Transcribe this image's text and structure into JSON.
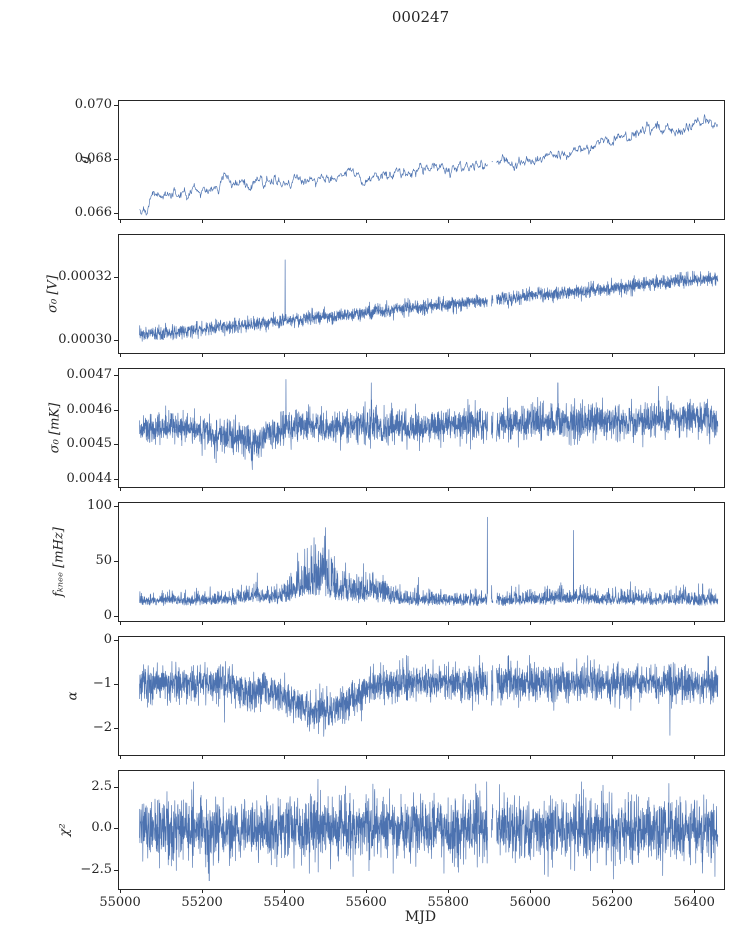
{
  "title": "000247",
  "chart_data": {
    "type": "line",
    "title": "000247",
    "xlabel": "MJD",
    "line_color": "#4c72b0",
    "axis_color": "#262626",
    "x_range": [
      54995,
      56470
    ],
    "x_data_range": [
      55045,
      56455
    ],
    "xticks": [
      55000,
      55200,
      55400,
      55600,
      55800,
      56000,
      56200,
      56400
    ],
    "xtick_labels": [
      "55000",
      "55200",
      "55400",
      "55600",
      "55800",
      "56000",
      "56200",
      "56400"
    ],
    "gaps": [
      [
        55894,
        55903
      ],
      [
        55907,
        55915
      ]
    ],
    "panels": [
      {
        "ylabel": "g",
        "ylim": [
          0.0658,
          0.0702
        ],
        "yticks": [
          0.066,
          0.068,
          0.07
        ],
        "ytick_labels": [
          "0.066",
          "0.068",
          "0.070"
        ],
        "mode": "line",
        "samples": 1300,
        "amp": 0.0001,
        "trend": [
          [
            55045,
            0.0662
          ],
          [
            55060,
            0.0661
          ],
          [
            55075,
            0.0666
          ],
          [
            55110,
            0.0668
          ],
          [
            55150,
            0.0668
          ],
          [
            55200,
            0.0669
          ],
          [
            55235,
            0.067
          ],
          [
            55255,
            0.0675
          ],
          [
            55275,
            0.0671
          ],
          [
            55320,
            0.0671
          ],
          [
            55370,
            0.0672
          ],
          [
            55420,
            0.0673
          ],
          [
            55470,
            0.0673
          ],
          [
            55520,
            0.0674
          ],
          [
            55565,
            0.0676
          ],
          [
            55595,
            0.067
          ],
          [
            55620,
            0.0674
          ],
          [
            55660,
            0.0675
          ],
          [
            55720,
            0.0676
          ],
          [
            55780,
            0.0678
          ],
          [
            55830,
            0.0677
          ],
          [
            55880,
            0.0679
          ],
          [
            55930,
            0.0678
          ],
          [
            55980,
            0.068
          ],
          [
            56030,
            0.0681
          ],
          [
            56080,
            0.0682
          ],
          [
            56130,
            0.0684
          ],
          [
            56180,
            0.0686
          ],
          [
            56230,
            0.0688
          ],
          [
            56280,
            0.0691
          ],
          [
            56310,
            0.0693
          ],
          [
            56340,
            0.0691
          ],
          [
            56380,
            0.0693
          ],
          [
            56420,
            0.0694
          ],
          [
            56455,
            0.0694
          ]
        ],
        "spikes": []
      },
      {
        "ylabel": "σ₀ [V]",
        "ylim": [
          0.000296,
          0.000334
        ],
        "yticks": [
          0.0003,
          0.00032
        ],
        "ytick_labels": [
          "0.00030",
          "0.00032"
        ],
        "mode": "band",
        "samples": 2800,
        "amp": 2.2e-06,
        "trend": [
          [
            55045,
            0.000302
          ],
          [
            55150,
            0.000303
          ],
          [
            55300,
            0.000305
          ],
          [
            55450,
            0.000307
          ],
          [
            55600,
            0.000309
          ],
          [
            55750,
            0.000311
          ],
          [
            55900,
            0.000313
          ],
          [
            56050,
            0.000315
          ],
          [
            56200,
            0.000317
          ],
          [
            56350,
            0.000319
          ],
          [
            56455,
            0.00032
          ]
        ],
        "spikes": [
          [
            55400,
            0.000326
          ]
        ]
      },
      {
        "ylabel": "σ₀ [mK]",
        "ylim": [
          0.00438,
          0.00472
        ],
        "yticks": [
          0.0044,
          0.0045,
          0.0046,
          0.0047
        ],
        "ytick_labels": [
          "0.0044",
          "0.0045",
          "0.0046",
          "0.0047"
        ],
        "mode": "band",
        "samples": 2800,
        "amp": [
          [
            55045,
            4e-05
          ],
          [
            55300,
            5e-05
          ],
          [
            55420,
            5e-05
          ],
          [
            55500,
            4e-05
          ],
          [
            55600,
            5.5e-05
          ],
          [
            55700,
            4.5e-05
          ],
          [
            55900,
            5e-05
          ],
          [
            56100,
            5.5e-05
          ],
          [
            56300,
            5e-05
          ],
          [
            56455,
            5e-05
          ]
        ],
        "trend": [
          [
            55045,
            0.00455
          ],
          [
            55150,
            0.00455
          ],
          [
            55240,
            0.00453
          ],
          [
            55290,
            0.00452
          ],
          [
            55330,
            0.00451
          ],
          [
            55370,
            0.00454
          ],
          [
            55430,
            0.00456
          ],
          [
            55500,
            0.00455
          ],
          [
            55600,
            0.00456
          ],
          [
            55700,
            0.00455
          ],
          [
            55800,
            0.00456
          ],
          [
            55900,
            0.00456
          ],
          [
            56000,
            0.00457
          ],
          [
            56100,
            0.00457
          ],
          [
            56250,
            0.00457
          ],
          [
            56400,
            0.00458
          ],
          [
            56455,
            0.00457
          ]
        ],
        "spikes": [
          [
            55402,
            0.00469
          ],
          [
            55320,
            0.00443
          ],
          [
            55232,
            0.00445
          ],
          [
            55610,
            0.00468
          ],
          [
            56065,
            0.00468
          ],
          [
            56310,
            0.00467
          ]
        ]
      },
      {
        "ylabel": "fₖₙₑₑ [mHz]",
        "ylim": [
          -4,
          104
        ],
        "yticks": [
          0,
          50,
          100
        ],
        "ytick_labels": [
          "0",
          "50",
          "100"
        ],
        "mode": "posband",
        "samples": 2800,
        "amp": [
          [
            55045,
            9
          ],
          [
            55250,
            11
          ],
          [
            55310,
            16
          ],
          [
            55350,
            12
          ],
          [
            55390,
            18
          ],
          [
            55420,
            35
          ],
          [
            55450,
            55
          ],
          [
            55480,
            58
          ],
          [
            55510,
            48
          ],
          [
            55540,
            32
          ],
          [
            55570,
            26
          ],
          [
            55600,
            34
          ],
          [
            55630,
            28
          ],
          [
            55660,
            18
          ],
          [
            55700,
            14
          ],
          [
            55750,
            12
          ],
          [
            55850,
            11
          ],
          [
            56000,
            12
          ],
          [
            56050,
            14
          ],
          [
            56100,
            16
          ],
          [
            56160,
            12
          ],
          [
            56300,
            12
          ],
          [
            56380,
            14
          ],
          [
            56455,
            12
          ]
        ],
        "trend": [
          [
            55045,
            12
          ],
          [
            55200,
            12
          ],
          [
            55280,
            13
          ],
          [
            55330,
            15
          ],
          [
            55380,
            13
          ],
          [
            55420,
            16
          ],
          [
            55450,
            20
          ],
          [
            55490,
            20
          ],
          [
            55530,
            16
          ],
          [
            55570,
            14
          ],
          [
            55600,
            16
          ],
          [
            55640,
            14
          ],
          [
            55700,
            12
          ],
          [
            55900,
            12
          ],
          [
            56100,
            13
          ],
          [
            56455,
            12
          ]
        ],
        "spikes": [
          [
            55893,
            91
          ],
          [
            56103,
            79
          ],
          [
            55332,
            40
          ],
          [
            55725,
            36
          ],
          [
            56242,
            32
          ],
          [
            56418,
            30
          ]
        ]
      },
      {
        "ylabel": "α",
        "ylim": [
          -2.6,
          0.1
        ],
        "yticks": [
          0,
          -1,
          -2
        ],
        "ytick_labels": [
          "0",
          "−1",
          "−2"
        ],
        "mode": "band",
        "samples": 2800,
        "amp": 0.42,
        "trend": [
          [
            55045,
            -0.95
          ],
          [
            55200,
            -0.95
          ],
          [
            55270,
            -1.0
          ],
          [
            55310,
            -1.2
          ],
          [
            55350,
            -1.1
          ],
          [
            55390,
            -1.25
          ],
          [
            55425,
            -1.45
          ],
          [
            55460,
            -1.6
          ],
          [
            55510,
            -1.6
          ],
          [
            55550,
            -1.45
          ],
          [
            55585,
            -1.2
          ],
          [
            55620,
            -1.0
          ],
          [
            55680,
            -0.95
          ],
          [
            56455,
            -0.95
          ]
        ],
        "spikes": [
          [
            55252,
            -1.85
          ],
          [
            56338,
            -2.15
          ]
        ]
      },
      {
        "ylabel": "χ²",
        "ylim": [
          -3.6,
          3.5
        ],
        "yticks": [
          2.5,
          0.0,
          -2.5
        ],
        "ytick_labels": [
          "2.5",
          "0.0",
          "−2.5"
        ],
        "mode": "band",
        "samples": 2800,
        "amp": [
          [
            55045,
            1.5
          ],
          [
            55110,
            1.9
          ],
          [
            56455,
            1.9
          ]
        ],
        "trend": [
          [
            55045,
            0
          ],
          [
            56455,
            0
          ]
        ],
        "spikes": [
          [
            55215,
            -3.1
          ],
          [
            55480,
            3.0
          ],
          [
            56200,
            -3.0
          ]
        ]
      }
    ]
  }
}
